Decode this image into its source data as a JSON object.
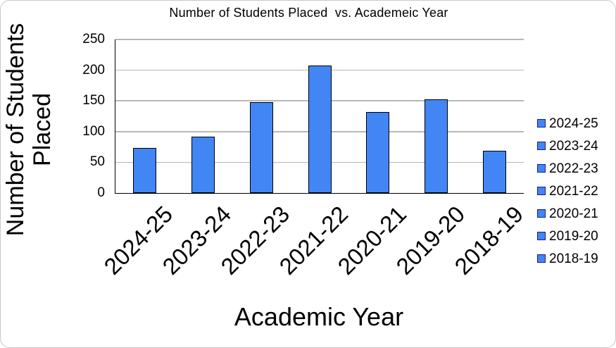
{
  "window": {
    "background": "#ffffff",
    "border_color": "#c9c9c9"
  },
  "chart_data": {
    "type": "bar",
    "title": "Number of Students Placed  vs. Academeic Year",
    "xlabel": "Academic Year",
    "ylabel": "Number of Students\nPlaced",
    "categories": [
      "2024-25",
      "2023-24",
      "2022-23",
      "2021-22",
      "2020-21",
      "2019-20",
      "2018-19"
    ],
    "values": [
      73,
      92,
      148,
      208,
      132,
      152,
      69
    ],
    "y_ticks": [
      0,
      50,
      100,
      150,
      200,
      250
    ],
    "ylim": [
      0,
      250
    ],
    "grid": true,
    "legend_position": "right",
    "legend_entries": [
      "2024-25",
      "2023-24",
      "2022-23",
      "2021-22",
      "2020-21",
      "2019-20",
      "2018-19"
    ],
    "colors": {
      "bar_fill": "#4285F4",
      "bar_border": "#000000",
      "gridline": "#b7b7b7",
      "axis": "#000000",
      "text": "#000000",
      "legend_marker_border": "#1a1a96"
    }
  }
}
